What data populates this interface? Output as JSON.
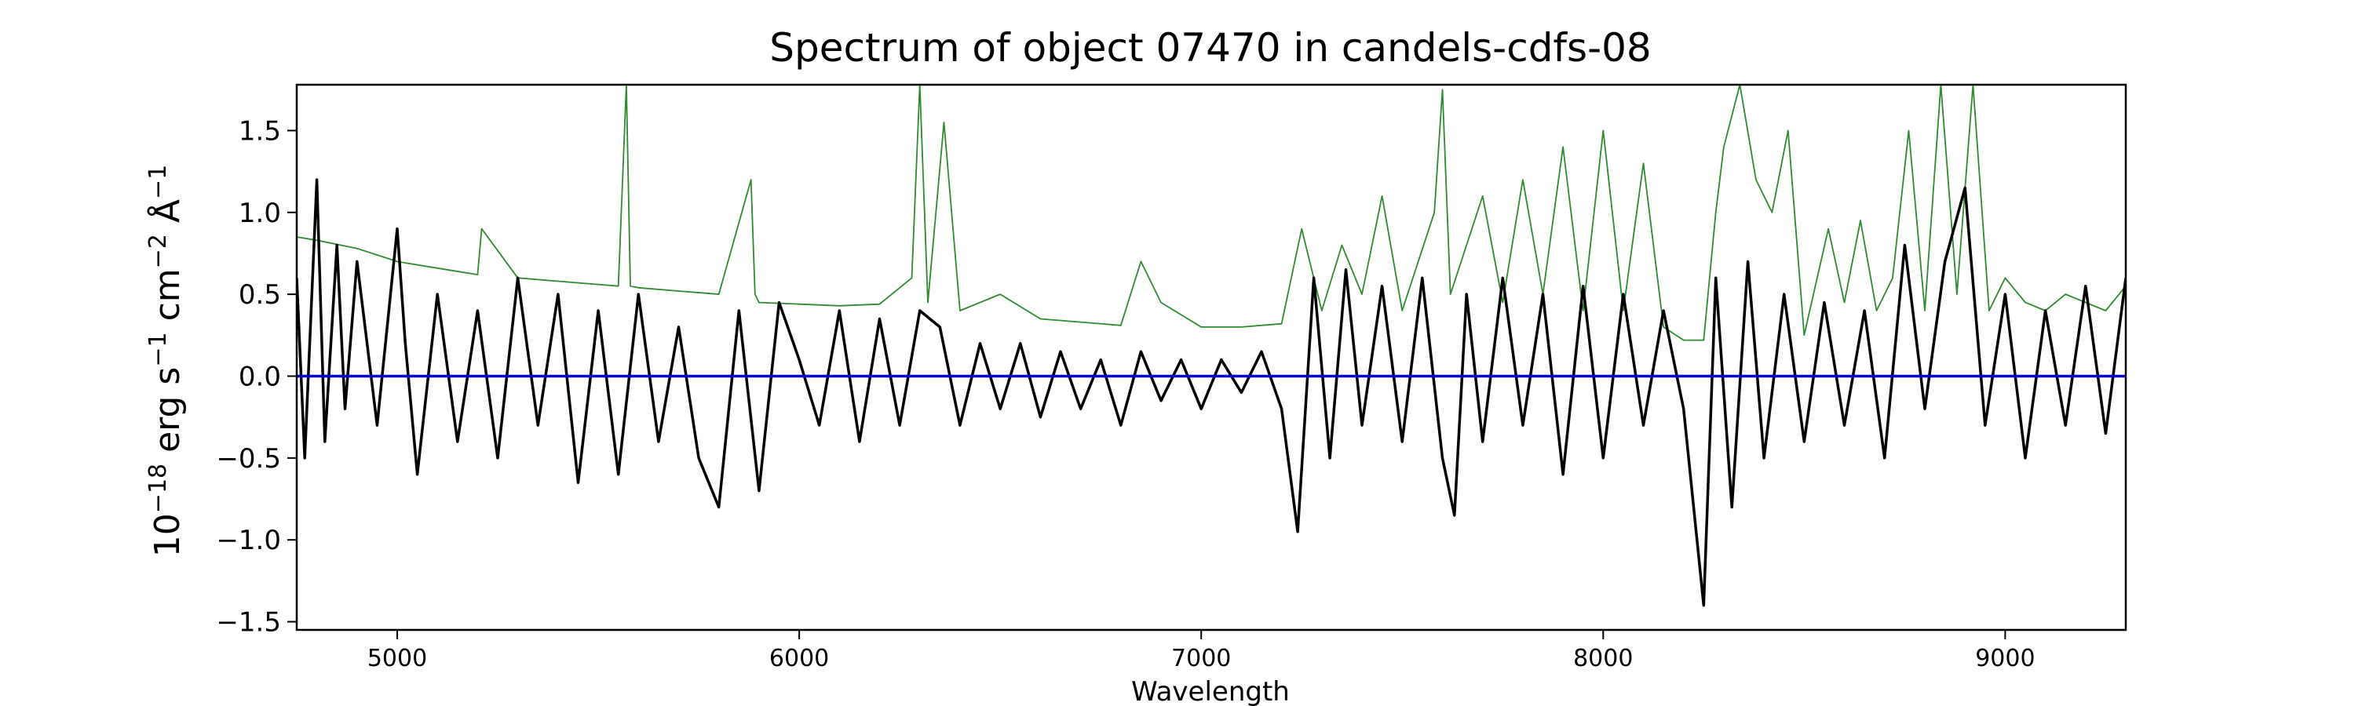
{
  "chart_data": {
    "type": "line",
    "title": "Spectrum of object 07470 in candels-cdfs-08",
    "xlabel": "Wavelength",
    "ylabel": "10^-18 erg s^-1 cm^-2 Å^-1",
    "ylabel_parts": {
      "t1": "10",
      "e1": "−18",
      "t2": " erg s",
      "e2": "−1",
      "t3": " cm",
      "e3": "−2",
      "t4": " Å",
      "e4": "−1"
    },
    "xlim": [
      4750,
      9300
    ],
    "ylim": [
      -1.55,
      1.78
    ],
    "xticks": [
      5000,
      6000,
      7000,
      8000,
      9000
    ],
    "yticks": [
      -1.5,
      -1.0,
      -0.5,
      0.0,
      0.5,
      1.0,
      1.5
    ],
    "xtick_labels": [
      "5000",
      "6000",
      "7000",
      "8000",
      "9000"
    ],
    "ytick_labels": [
      "−1.5",
      "−1.0",
      "−0.5",
      "0.0",
      "0.5",
      "1.0",
      "1.5"
    ],
    "grid": false,
    "colors": {
      "flux": "#000000",
      "error": "#2e8b2e",
      "zero": "#0000cc"
    },
    "series": [
      {
        "role": "flux",
        "x": [
          4750,
          4770,
          4800,
          4820,
          4850,
          4870,
          4900,
          4950,
          5000,
          5020,
          5050,
          5100,
          5150,
          5200,
          5250,
          5300,
          5350,
          5400,
          5450,
          5500,
          5550,
          5600,
          5650,
          5700,
          5750,
          5800,
          5850,
          5900,
          5950,
          6000,
          6050,
          6100,
          6150,
          6200,
          6250,
          6300,
          6350,
          6400,
          6450,
          6500,
          6550,
          6600,
          6650,
          6700,
          6750,
          6800,
          6850,
          6900,
          6950,
          7000,
          7050,
          7100,
          7150,
          7200,
          7240,
          7280,
          7320,
          7360,
          7400,
          7450,
          7500,
          7550,
          7600,
          7630,
          7660,
          7700,
          7750,
          7800,
          7850,
          7900,
          7950,
          8000,
          8050,
          8100,
          8150,
          8200,
          8250,
          8280,
          8320,
          8360,
          8400,
          8450,
          8500,
          8550,
          8600,
          8650,
          8700,
          8750,
          8800,
          8850,
          8900,
          8950,
          9000,
          9050,
          9100,
          9150,
          9200,
          9250,
          9300
        ],
        "y": [
          0.6,
          -0.5,
          1.2,
          -0.4,
          0.8,
          -0.2,
          0.7,
          -0.3,
          0.9,
          0.2,
          -0.6,
          0.5,
          -0.4,
          0.4,
          -0.5,
          0.6,
          -0.3,
          0.5,
          -0.65,
          0.4,
          -0.6,
          0.5,
          -0.4,
          0.3,
          -0.5,
          -0.8,
          0.4,
          -0.7,
          0.45,
          0.1,
          -0.3,
          0.4,
          -0.4,
          0.35,
          -0.3,
          0.4,
          0.3,
          -0.3,
          0.2,
          -0.2,
          0.2,
          -0.25,
          0.15,
          -0.2,
          0.1,
          -0.3,
          0.15,
          -0.15,
          0.1,
          -0.2,
          0.1,
          -0.1,
          0.15,
          -0.2,
          -0.95,
          0.6,
          -0.5,
          0.65,
          -0.3,
          0.55,
          -0.4,
          0.6,
          -0.5,
          -0.85,
          0.5,
          -0.4,
          0.6,
          -0.3,
          0.5,
          -0.6,
          0.55,
          -0.5,
          0.5,
          -0.3,
          0.4,
          -0.2,
          -1.4,
          0.6,
          -0.8,
          0.7,
          -0.5,
          0.5,
          -0.4,
          0.45,
          -0.3,
          0.4,
          -0.5,
          0.8,
          -0.2,
          0.7,
          1.15,
          -0.3,
          0.5,
          -0.5,
          0.4,
          -0.3,
          0.55,
          -0.35,
          0.6
        ]
      },
      {
        "role": "error",
        "x": [
          4750,
          4800,
          4900,
          5000,
          5100,
          5200,
          5210,
          5300,
          5400,
          5500,
          5550,
          5570,
          5580,
          5600,
          5700,
          5800,
          5880,
          5890,
          5900,
          6000,
          6100,
          6200,
          6280,
          6300,
          6320,
          6360,
          6400,
          6500,
          6600,
          6700,
          6800,
          6850,
          6900,
          7000,
          7100,
          7200,
          7250,
          7300,
          7350,
          7400,
          7450,
          7500,
          7580,
          7600,
          7620,
          7700,
          7750,
          7800,
          7850,
          7900,
          7950,
          8000,
          8050,
          8100,
          8150,
          8200,
          8250,
          8280,
          8300,
          8340,
          8380,
          8420,
          8460,
          8500,
          8560,
          8600,
          8640,
          8680,
          8720,
          8760,
          8800,
          8840,
          8880,
          8920,
          8960,
          9000,
          9050,
          9100,
          9150,
          9200,
          9250,
          9300
        ],
        "y": [
          0.85,
          0.83,
          0.78,
          0.7,
          0.66,
          0.62,
          0.9,
          0.6,
          0.58,
          0.56,
          0.55,
          1.78,
          0.55,
          0.54,
          0.52,
          0.5,
          1.2,
          0.5,
          0.45,
          0.44,
          0.43,
          0.44,
          0.6,
          1.78,
          0.45,
          1.55,
          0.4,
          0.5,
          0.35,
          0.33,
          0.31,
          0.7,
          0.45,
          0.3,
          0.3,
          0.32,
          0.9,
          0.4,
          0.8,
          0.5,
          1.1,
          0.4,
          1.0,
          1.75,
          0.5,
          1.1,
          0.45,
          1.2,
          0.5,
          1.4,
          0.4,
          1.5,
          0.4,
          1.3,
          0.3,
          0.22,
          0.22,
          1.0,
          1.4,
          1.78,
          1.2,
          1.0,
          1.5,
          0.25,
          0.9,
          0.45,
          0.95,
          0.4,
          0.6,
          1.5,
          0.4,
          1.78,
          0.5,
          1.78,
          0.4,
          0.6,
          0.45,
          0.4,
          0.5,
          0.45,
          0.4,
          0.55
        ]
      },
      {
        "role": "zero",
        "x": [
          4750,
          9300
        ],
        "y": [
          0,
          0
        ]
      }
    ]
  }
}
